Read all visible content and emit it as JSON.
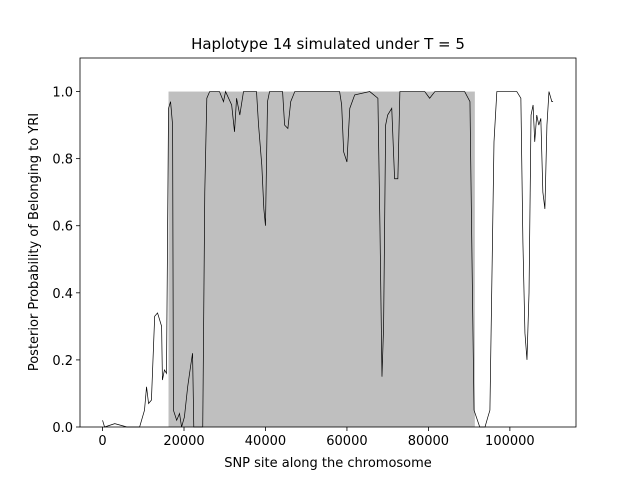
{
  "chart_data": {
    "type": "line",
    "title": "Haplotype 14 simulated under T =  5",
    "x_label": "SNP site along the chromosome",
    "y_label": "Posterior Probability of Belonging to YRI",
    "xlim": [
      -5535,
      116235
    ],
    "ylim": [
      0,
      1.1
    ],
    "xticks": [
      0,
      20000,
      40000,
      60000,
      80000,
      100000
    ],
    "yticks": [
      {
        "value": 0,
        "label": "0.0"
      },
      {
        "value": 0.2,
        "label": "0.2"
      },
      {
        "value": 0.4,
        "label": "0.4"
      },
      {
        "value": 0.6,
        "label": "0.6"
      },
      {
        "value": 0.8,
        "label": "0.8"
      },
      {
        "value": 1,
        "label": "1.0"
      }
    ],
    "shade": {
      "xmin": 16200,
      "xmax": 91400,
      "ymin": 0,
      "ymax": 1,
      "color": "#bfbfbf"
    },
    "series": [
      {
        "color": "#000000",
        "x": [
          0,
          500,
          3000,
          6000,
          9100,
          10300,
          10800,
          11300,
          12000,
          12800,
          13500,
          14000,
          14500,
          14700,
          15200,
          15700,
          16200,
          16700,
          17200,
          17400,
          18200,
          18900,
          19400,
          20100,
          20900,
          21600,
          22100,
          22400,
          24600,
          25100,
          25600,
          26300,
          28700,
          29700,
          30200,
          31700,
          32400,
          32900,
          33700,
          34600,
          37800,
          38300,
          39100,
          39600,
          40000,
          40500,
          41000,
          44200,
          44700,
          45500,
          46200,
          47200,
          58200,
          58700,
          59200,
          60000,
          60700,
          61900,
          65600,
          67600,
          68100,
          68600,
          69000,
          69500,
          70000,
          71000,
          71700,
          72500,
          73000,
          79100,
          80300,
          81600,
          88900,
          90200,
          90700,
          91200,
          92600,
          93900,
          94600,
          95100,
          96100,
          96800,
          101700,
          102700,
          103200,
          103700,
          104200,
          104700,
          105200,
          105700,
          106100,
          106600,
          107100,
          107600,
          108100,
          108600,
          109100,
          109600,
          110300,
          110600
        ],
        "values": [
          0.02,
          0,
          0.01,
          0,
          0,
          0.05,
          0.12,
          0.07,
          0.08,
          0.33,
          0.34,
          0.32,
          0.3,
          0.14,
          0.17,
          0.16,
          0.95,
          0.97,
          0.9,
          0.05,
          0.02,
          0.04,
          0,
          0.03,
          0.12,
          0.18,
          0.22,
          0,
          0,
          0.7,
          0.98,
          1,
          1,
          0.97,
          1,
          0.96,
          0.88,
          0.98,
          0.93,
          1,
          1,
          0.9,
          0.78,
          0.65,
          0.6,
          0.97,
          1,
          1,
          0.9,
          0.89,
          0.97,
          1,
          1,
          0.96,
          0.82,
          0.79,
          0.95,
          0.99,
          1,
          0.98,
          0.6,
          0.15,
          0.3,
          0.9,
          0.93,
          0.95,
          0.74,
          0.74,
          1,
          1,
          0.98,
          1,
          1,
          0.97,
          0.5,
          0.05,
          0,
          0,
          0.03,
          0.05,
          0.85,
          1,
          1,
          0.98,
          0.55,
          0.28,
          0.2,
          0.4,
          0.93,
          0.96,
          0.85,
          0.93,
          0.9,
          0.92,
          0.7,
          0.65,
          0.9,
          1,
          0.97,
          0.97
        ]
      }
    ]
  }
}
